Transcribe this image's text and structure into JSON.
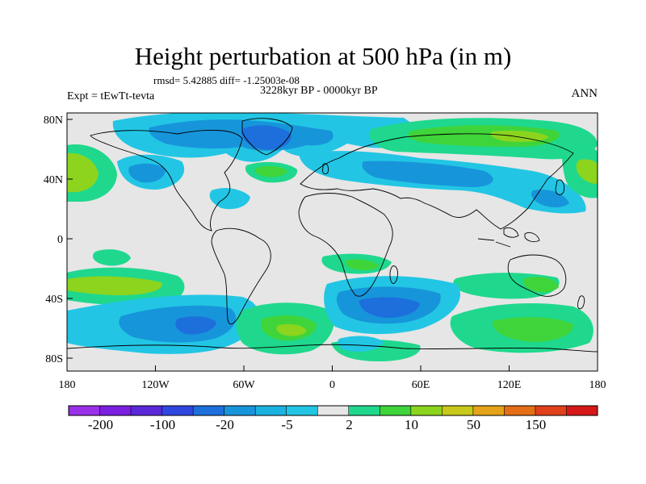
{
  "title": "Height perturbation at 500 hPa (in m)",
  "stats": "rmsd= 5.42885 diff= -1.25003e-08",
  "period": "3228kyr BP - 0000kyr BP",
  "experiment": "Expt = tEwTt-tevta",
  "season": "ANN",
  "axes": {
    "lat_labels": [
      "80N",
      "40N",
      "0",
      "40S",
      "80S"
    ],
    "lon_labels": [
      "180",
      "120W",
      "60W",
      "0",
      "60E",
      "120E",
      "180"
    ]
  },
  "colorbar": {
    "colors": [
      "#9a30e8",
      "#7a1ee0",
      "#5a28d8",
      "#3046e0",
      "#1d6fdc",
      "#1795da",
      "#1bb2e0",
      "#22c6e4",
      "#e6e6e6",
      "#1fd88e",
      "#3fd43a",
      "#8cd41e",
      "#c8c81a",
      "#e4a318",
      "#e46e16",
      "#e0401a",
      "#d61818"
    ],
    "labels": [
      "-200",
      "-100",
      "-20",
      "-5",
      "2",
      "10",
      "50",
      "150"
    ]
  }
}
